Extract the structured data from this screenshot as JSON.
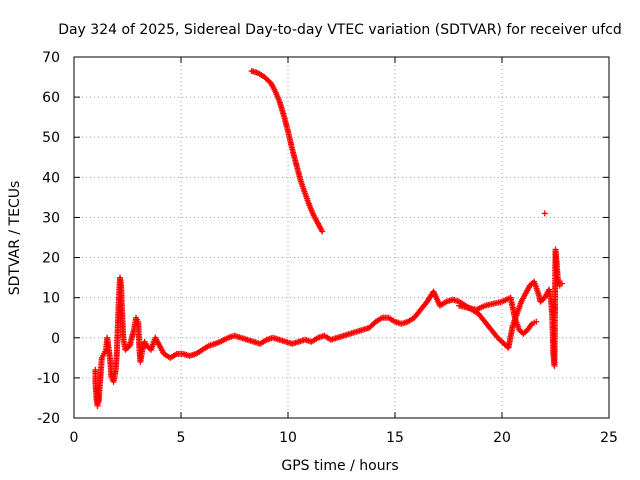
{
  "chart_data": {
    "type": "scatter",
    "title": "Day 324 of 2025, Sidereal Day-to-day VTEC variation (SDTVAR) for receiver ufcd",
    "xlabel": "GPS time / hours",
    "ylabel": "SDTVAR / TECUs",
    "xlim": [
      0,
      25
    ],
    "ylim": [
      -20,
      70
    ],
    "xticks": [
      "0",
      "5",
      "10",
      "15",
      "20",
      "25"
    ],
    "yticks": [
      "-20",
      "-10",
      "0",
      "10",
      "20",
      "30",
      "40",
      "50",
      "60",
      "70"
    ],
    "grid": true,
    "marker": "+",
    "color": "#ff0000",
    "series": [
      {
        "name": "main-trace",
        "points": [
          [
            1.0,
            -8
          ],
          [
            1.0,
            -11
          ],
          [
            1.05,
            -15
          ],
          [
            1.1,
            -17
          ],
          [
            1.1,
            -13
          ],
          [
            1.15,
            -16
          ],
          [
            1.3,
            -5
          ],
          [
            1.4,
            -4
          ],
          [
            1.5,
            -3
          ],
          [
            1.55,
            0
          ],
          [
            1.6,
            -2
          ],
          [
            1.7,
            -6
          ],
          [
            1.75,
            -10
          ],
          [
            1.85,
            -11
          ],
          [
            1.95,
            -8
          ],
          [
            2.0,
            -4
          ],
          [
            2.05,
            3
          ],
          [
            2.1,
            10
          ],
          [
            2.15,
            15
          ],
          [
            2.2,
            13
          ],
          [
            2.25,
            6
          ],
          [
            2.3,
            0
          ],
          [
            2.4,
            -3
          ],
          [
            2.6,
            -2
          ],
          [
            2.8,
            2
          ],
          [
            2.9,
            5
          ],
          [
            3.0,
            4
          ],
          [
            3.05,
            -2
          ],
          [
            3.1,
            -6
          ],
          [
            3.2,
            -3
          ],
          [
            3.3,
            -1
          ],
          [
            3.4,
            -2
          ],
          [
            3.6,
            -3
          ],
          [
            3.8,
            0
          ],
          [
            4.0,
            -2
          ],
          [
            4.2,
            -4
          ],
          [
            4.5,
            -5
          ],
          [
            4.8,
            -4
          ],
          [
            5.1,
            -4
          ],
          [
            5.4,
            -4.5
          ],
          [
            5.7,
            -4
          ],
          [
            6.0,
            -3
          ],
          [
            6.3,
            -2
          ],
          [
            6.6,
            -1.5
          ],
          [
            6.9,
            -0.8
          ],
          [
            7.2,
            0
          ],
          [
            7.5,
            0.5
          ],
          [
            7.8,
            0
          ],
          [
            8.1,
            -0.5
          ],
          [
            8.4,
            -1
          ],
          [
            8.7,
            -1.5
          ],
          [
            9.0,
            -0.5
          ],
          [
            9.3,
            0
          ],
          [
            9.6,
            -0.5
          ],
          [
            9.9,
            -1
          ],
          [
            10.2,
            -1.5
          ],
          [
            10.5,
            -1
          ],
          [
            10.8,
            -0.5
          ],
          [
            11.1,
            -1
          ],
          [
            11.4,
            0
          ],
          [
            11.7,
            0.5
          ],
          [
            12.0,
            -0.5
          ],
          [
            12.3,
            0
          ],
          [
            12.6,
            0.5
          ],
          [
            12.9,
            1
          ],
          [
            13.2,
            1.5
          ],
          [
            13.5,
            2
          ],
          [
            13.8,
            2.5
          ],
          [
            14.1,
            4
          ],
          [
            14.4,
            5
          ],
          [
            14.7,
            5
          ],
          [
            15.0,
            4
          ],
          [
            15.3,
            3.5
          ],
          [
            15.6,
            4
          ],
          [
            15.9,
            5
          ],
          [
            16.2,
            7
          ],
          [
            16.5,
            9
          ],
          [
            16.8,
            11.5
          ],
          [
            17.1,
            8
          ],
          [
            17.4,
            9
          ],
          [
            17.7,
            9.5
          ],
          [
            18.0,
            9
          ],
          [
            18.3,
            8
          ],
          [
            18.6,
            7
          ],
          [
            18.9,
            6
          ],
          [
            19.2,
            4
          ],
          [
            19.5,
            2
          ],
          [
            19.8,
            0
          ],
          [
            20.0,
            -1
          ],
          [
            20.3,
            -2.5
          ],
          [
            20.5,
            3
          ],
          [
            20.7,
            6
          ],
          [
            20.9,
            9
          ],
          [
            21.1,
            11
          ],
          [
            21.3,
            13
          ],
          [
            21.5,
            14
          ],
          [
            21.7,
            11
          ],
          [
            21.8,
            9
          ],
          [
            22.0,
            10
          ],
          [
            22.2,
            12
          ],
          [
            22.3,
            9
          ],
          [
            22.35,
            5
          ],
          [
            22.4,
            -4
          ],
          [
            22.45,
            -7
          ],
          [
            22.5,
            22
          ],
          [
            22.55,
            19
          ],
          [
            22.6,
            15
          ],
          [
            22.7,
            13
          ],
          [
            22.8,
            13.5
          ]
        ]
      },
      {
        "name": "upper-branch",
        "points": [
          [
            18.0,
            8
          ],
          [
            18.4,
            7.5
          ],
          [
            18.8,
            7
          ],
          [
            19.2,
            8
          ],
          [
            19.6,
            8.5
          ],
          [
            20.0,
            9
          ],
          [
            20.4,
            10
          ],
          [
            20.6,
            5
          ],
          [
            20.8,
            2
          ],
          [
            21.0,
            1
          ],
          [
            21.2,
            2
          ],
          [
            21.4,
            3.5
          ],
          [
            21.6,
            4
          ]
        ]
      },
      {
        "name": "high-arc",
        "points": [
          [
            8.3,
            66.5
          ],
          [
            8.6,
            66
          ],
          [
            8.9,
            65
          ],
          [
            9.2,
            63.5
          ],
          [
            9.4,
            61.5
          ],
          [
            9.6,
            59
          ],
          [
            9.8,
            55.5
          ],
          [
            10.0,
            51.5
          ],
          [
            10.2,
            47
          ],
          [
            10.4,
            43
          ],
          [
            10.6,
            39
          ],
          [
            10.8,
            36
          ],
          [
            11.0,
            33
          ],
          [
            11.2,
            30.5
          ],
          [
            11.4,
            28.5
          ],
          [
            11.6,
            26.5
          ]
        ]
      },
      {
        "name": "outlier",
        "points": [
          [
            22.0,
            31
          ]
        ]
      }
    ]
  }
}
